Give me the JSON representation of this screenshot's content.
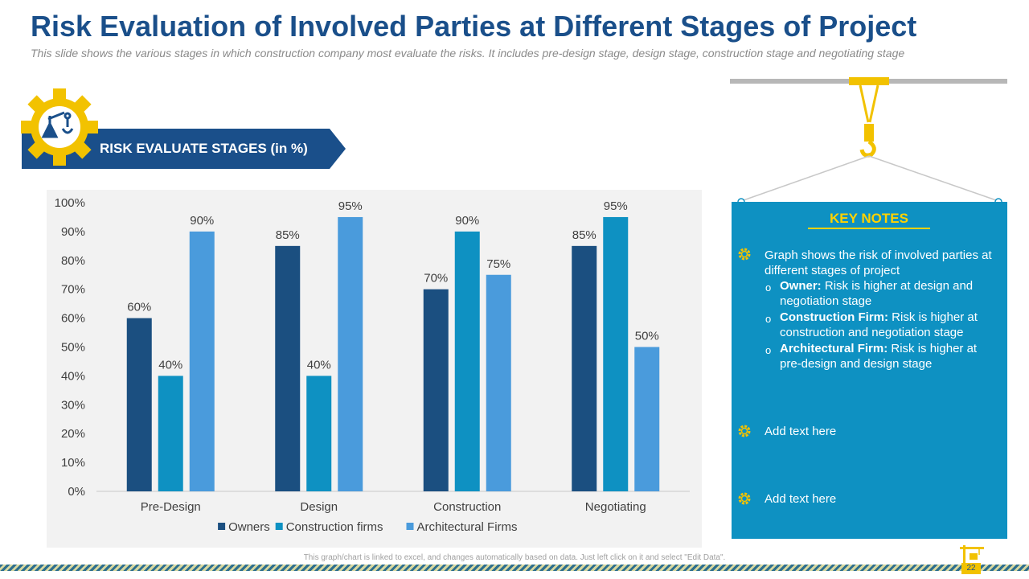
{
  "header": {
    "title": "Risk Evaluation of Involved Parties at Different Stages of Project",
    "subtitle": "This slide shows the various stages in which construction company most evaluate the risks. It includes pre-design stage, design stage, construction stage and negotiating stage"
  },
  "banner": {
    "label": "RISK EVALUATE STAGES (in %)"
  },
  "icons": {
    "gear": "gear-crane-icon",
    "hook": "crane-hook-icon",
    "note_bullet": "gear-bullet-icon"
  },
  "colors": {
    "owners": "#1b4f80",
    "construction_firms": "#0e91c2",
    "architectural_firms": "#4a9bdc",
    "title": "#1a4f8a",
    "accent": "#f2c200",
    "notes_bg": "#0e91c2"
  },
  "chart_data": {
    "type": "bar",
    "categories": [
      "Pre-Design",
      "Design",
      "Construction",
      "Negotiating"
    ],
    "series": [
      {
        "name": "Owners",
        "values": [
          60,
          85,
          70,
          85
        ]
      },
      {
        "name": "Construction firms",
        "values": [
          40,
          40,
          90,
          95
        ]
      },
      {
        "name": "Architectural Firms",
        "values": [
          90,
          95,
          75,
          50
        ]
      }
    ],
    "ylim": [
      0,
      100
    ],
    "yticks": [
      "0%",
      "10%",
      "20%",
      "30%",
      "40%",
      "50%",
      "60%",
      "70%",
      "80%",
      "90%",
      "100%"
    ],
    "value_suffix": "%",
    "legend_position": "bottom",
    "grid": false
  },
  "notes": {
    "title": "KEY NOTES",
    "intro": "Graph shows the risk of involved parties at different stages of project",
    "items": [
      {
        "label": "Owner:",
        "text": "Risk is higher at design and negotiation stage"
      },
      {
        "label": "Construction Firm:",
        "text": "Risk is higher at construction and negotiation stage"
      },
      {
        "label": "Architectural Firm:",
        "text": "Risk is higher at pre-design and design stage"
      }
    ],
    "add_text_1": "Add text here",
    "add_text_2": "Add text here"
  },
  "footer": {
    "note": "This graph/chart is linked to excel, and changes automatically based on data. Just left click on it and select \"Edit Data\".",
    "page_number": "22"
  }
}
